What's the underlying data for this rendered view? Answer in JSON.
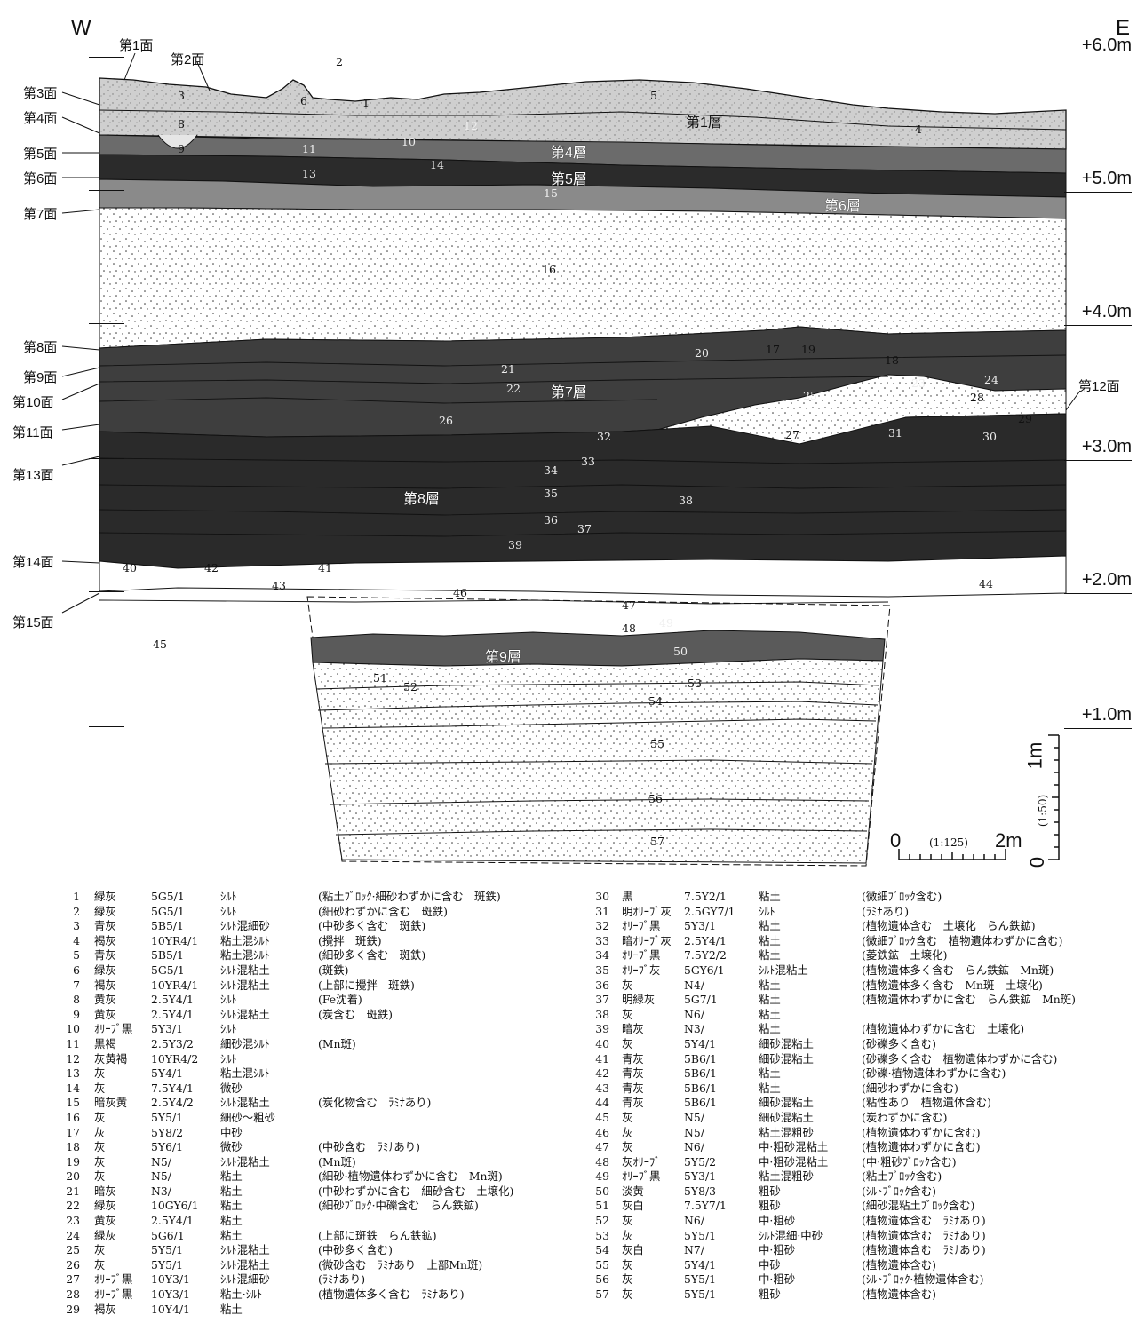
{
  "compass": {
    "west": "W",
    "east": "E"
  },
  "surfaces": [
    {
      "label": "第1面"
    },
    {
      "label": "第2面"
    },
    {
      "label": "第3面"
    },
    {
      "label": "第4面"
    },
    {
      "label": "第5面"
    },
    {
      "label": "第6面"
    },
    {
      "label": "第7面"
    },
    {
      "label": "第8面"
    },
    {
      "label": "第9面"
    },
    {
      "label": "第10面"
    },
    {
      "label": "第11面"
    },
    {
      "label": "第12面"
    },
    {
      "label": "第13面"
    },
    {
      "label": "第14面"
    },
    {
      "label": "第15面"
    }
  ],
  "elevations": [
    "+6.0m",
    "+5.0m",
    "+4.0m",
    "+3.0m",
    "+2.0m",
    "+1.0m"
  ],
  "strata": [
    "第1層",
    "第4層",
    "第5層",
    "第6層",
    "第7層",
    "第8層",
    "第9層"
  ],
  "unit_numbers": [
    "1",
    "2",
    "3",
    "4",
    "5",
    "6",
    "8",
    "9",
    "10",
    "11",
    "12",
    "13",
    "14",
    "15",
    "16",
    "17",
    "18",
    "19",
    "20",
    "21",
    "22",
    "23",
    "24",
    "25",
    "26",
    "27",
    "28",
    "29",
    "30",
    "31",
    "32",
    "33",
    "34",
    "35",
    "36",
    "37",
    "38",
    "39",
    "40",
    "41",
    "42",
    "43",
    "44",
    "45",
    "46",
    "47",
    "48",
    "49",
    "50",
    "51",
    "52",
    "53",
    "54",
    "55",
    "56",
    "57"
  ],
  "scale": {
    "horizontal": {
      "zero": "0",
      "ratio": "(1:125)",
      "max": "2m"
    },
    "vertical": {
      "zero": "0",
      "ratio": "(1:50)",
      "max": "1m"
    }
  },
  "legend": [
    {
      "no": "1",
      "color": "緑灰",
      "munsell": "5G5/1",
      "soil": "ｼﾙﾄ",
      "note": "(粘土ﾌﾞﾛｯｸ·細砂わずかに含む　斑鉄)"
    },
    {
      "no": "2",
      "color": "緑灰",
      "munsell": "5G5/1",
      "soil": "ｼﾙﾄ",
      "note": "(細砂わずかに含む　斑鉄)"
    },
    {
      "no": "3",
      "color": "青灰",
      "munsell": "5B5/1",
      "soil": "ｼﾙﾄ混細砂",
      "note": "(中砂多く含む　斑鉄)"
    },
    {
      "no": "4",
      "color": "褐灰",
      "munsell": "10YR4/1",
      "soil": "粘土混ｼﾙﾄ",
      "note": "(攪拌　斑鉄)"
    },
    {
      "no": "5",
      "color": "青灰",
      "munsell": "5B5/1",
      "soil": "粘土混ｼﾙﾄ",
      "note": "(細砂多く含む　斑鉄)"
    },
    {
      "no": "6",
      "color": "緑灰",
      "munsell": "5G5/1",
      "soil": "ｼﾙﾄ混粘土",
      "note": "(斑鉄)"
    },
    {
      "no": "7",
      "color": "褐灰",
      "munsell": "10YR4/1",
      "soil": "ｼﾙﾄ混粘土",
      "note": "(上部に攪拌　斑鉄)"
    },
    {
      "no": "8",
      "color": "黄灰",
      "munsell": "2.5Y4/1",
      "soil": "ｼﾙﾄ",
      "note": "(Fe沈着)"
    },
    {
      "no": "9",
      "color": "黄灰",
      "munsell": "2.5Y4/1",
      "soil": "ｼﾙﾄ混粘土",
      "note": "(炭含む　斑鉄)"
    },
    {
      "no": "10",
      "color": "ｵﾘｰﾌﾞ黒",
      "munsell": "5Y3/1",
      "soil": "ｼﾙﾄ",
      "note": ""
    },
    {
      "no": "11",
      "color": "黒褐",
      "munsell": "2.5Y3/2",
      "soil": "細砂混ｼﾙﾄ",
      "note": "(Mn斑)"
    },
    {
      "no": "12",
      "color": "灰黄褐",
      "munsell": "10YR4/2",
      "soil": "ｼﾙﾄ",
      "note": ""
    },
    {
      "no": "13",
      "color": "灰",
      "munsell": "5Y4/1",
      "soil": "粘土混ｼﾙﾄ",
      "note": ""
    },
    {
      "no": "14",
      "color": "灰",
      "munsell": "7.5Y4/1",
      "soil": "微砂",
      "note": ""
    },
    {
      "no": "15",
      "color": "暗灰黄",
      "munsell": "2.5Y4/2",
      "soil": "ｼﾙﾄ混粘土",
      "note": "(炭化物含む　ﾗﾐﾅあり)"
    },
    {
      "no": "16",
      "color": "灰",
      "munsell": "5Y5/1",
      "soil": "細砂～粗砂",
      "note": ""
    },
    {
      "no": "17",
      "color": "灰",
      "munsell": "5Y8/2",
      "soil": "中砂",
      "note": ""
    },
    {
      "no": "18",
      "color": "灰",
      "munsell": "5Y6/1",
      "soil": "微砂",
      "note": "(中砂含む　ﾗﾐﾅあり)"
    },
    {
      "no": "19",
      "color": "灰",
      "munsell": "N5/",
      "soil": "ｼﾙﾄ混粘土",
      "note": "(Mn斑)"
    },
    {
      "no": "20",
      "color": "灰",
      "munsell": "N5/",
      "soil": "粘土",
      "note": "(細砂·植物遺体わずかに含む　Mn斑)"
    },
    {
      "no": "21",
      "color": "暗灰",
      "munsell": "N3/",
      "soil": "粘土",
      "note": "(中砂わずかに含む　細砂含む　土壌化)"
    },
    {
      "no": "22",
      "color": "緑灰",
      "munsell": "10GY6/1",
      "soil": "粘土",
      "note": "(細砂ﾌﾞﾛｯｸ·中礫含む　らん鉄鉱)"
    },
    {
      "no": "23",
      "color": "黄灰",
      "munsell": "2.5Y4/1",
      "soil": "粘土",
      "note": ""
    },
    {
      "no": "24",
      "color": "緑灰",
      "munsell": "5G6/1",
      "soil": "粘土",
      "note": "(上部に斑鉄　らん鉄鉱)"
    },
    {
      "no": "25",
      "color": "灰",
      "munsell": "5Y5/1",
      "soil": "ｼﾙﾄ混粘土",
      "note": "(中砂多く含む)"
    },
    {
      "no": "26",
      "color": "灰",
      "munsell": "5Y5/1",
      "soil": "ｼﾙﾄ混粘土",
      "note": "(微砂含む　ﾗﾐﾅあり　上部Mn斑)"
    },
    {
      "no": "27",
      "color": "ｵﾘｰﾌﾞ黒",
      "munsell": "10Y3/1",
      "soil": "ｼﾙﾄ混細砂",
      "note": "(ﾗﾐﾅあり)"
    },
    {
      "no": "28",
      "color": "ｵﾘｰﾌﾞ黒",
      "munsell": "10Y3/1",
      "soil": "粘土·ｼﾙﾄ",
      "note": "(植物遺体多く含む　ﾗﾐﾅあり)"
    },
    {
      "no": "29",
      "color": "褐灰",
      "munsell": "10Y4/1",
      "soil": "粘土",
      "note": ""
    },
    {
      "no": "30",
      "color": "黒",
      "munsell": "7.5Y2/1",
      "soil": "粘土",
      "note": "(微細ﾌﾞﾛｯｸ含む)"
    },
    {
      "no": "31",
      "color": "明ｵﾘｰﾌﾞ灰",
      "munsell": "2.5GY7/1",
      "soil": "ｼﾙﾄ",
      "note": "(ﾗﾐﾅあり)"
    },
    {
      "no": "32",
      "color": "ｵﾘｰﾌﾞ黒",
      "munsell": "5Y3/1",
      "soil": "粘土",
      "note": "(植物遺体含む　土壌化　らん鉄鉱)"
    },
    {
      "no": "33",
      "color": "暗ｵﾘｰﾌﾞ灰",
      "munsell": "2.5Y4/1",
      "soil": "粘土",
      "note": "(微細ﾌﾞﾛｯｸ含む　植物遺体わずかに含む)"
    },
    {
      "no": "34",
      "color": "ｵﾘｰﾌﾞ黒",
      "munsell": "7.5Y2/2",
      "soil": "粘土",
      "note": "(菱鉄鉱　土壌化)"
    },
    {
      "no": "35",
      "color": "ｵﾘｰﾌﾞ灰",
      "munsell": "5GY6/1",
      "soil": "ｼﾙﾄ混粘土",
      "note": "(植物遺体多く含む　らん鉄鉱　Mn斑)"
    },
    {
      "no": "36",
      "color": "灰",
      "munsell": "N4/",
      "soil": "粘土",
      "note": "(植物遺体多く含む　Mn斑　土壌化)"
    },
    {
      "no": "37",
      "color": "明緑灰",
      "munsell": "5G7/1",
      "soil": "粘土",
      "note": "(植物遺体わずかに含む　らん鉄鉱　Mn斑)"
    },
    {
      "no": "38",
      "color": "灰",
      "munsell": "N6/",
      "soil": "粘土",
      "note": ""
    },
    {
      "no": "39",
      "color": "暗灰",
      "munsell": "N3/",
      "soil": "粘土",
      "note": "(植物遺体わずかに含む　土壌化)"
    },
    {
      "no": "40",
      "color": "灰",
      "munsell": "5Y4/1",
      "soil": "細砂混粘土",
      "note": "(砂礫多く含む)"
    },
    {
      "no": "41",
      "color": "青灰",
      "munsell": "5B6/1",
      "soil": "細砂混粘土",
      "note": "(砂礫多く含む　植物遺体わずかに含む)"
    },
    {
      "no": "42",
      "color": "青灰",
      "munsell": "5B6/1",
      "soil": "粘土",
      "note": "(砂礫·植物遺体わずかに含む)"
    },
    {
      "no": "43",
      "color": "青灰",
      "munsell": "5B6/1",
      "soil": "粘土",
      "note": "(細砂わずかに含む)"
    },
    {
      "no": "44",
      "color": "青灰",
      "munsell": "5B6/1",
      "soil": "細砂混粘土",
      "note": "(粘性あり　植物遺体含む)"
    },
    {
      "no": "45",
      "color": "灰",
      "munsell": "N5/",
      "soil": "細砂混粘土",
      "note": "(炭わずかに含む)"
    },
    {
      "no": "46",
      "color": "灰",
      "munsell": "N5/",
      "soil": "粘土混粗砂",
      "note": "(植物遺体わずかに含む)"
    },
    {
      "no": "47",
      "color": "灰",
      "munsell": "N6/",
      "soil": "中·粗砂混粘土",
      "note": "(植物遺体わずかに含む)"
    },
    {
      "no": "48",
      "color": "灰ｵﾘｰﾌﾞ",
      "munsell": "5Y5/2",
      "soil": "中·粗砂混粘土",
      "note": "(中·粗砂ﾌﾞﾛｯｸ含む)"
    },
    {
      "no": "49",
      "color": "ｵﾘｰﾌﾞ黒",
      "munsell": "5Y3/1",
      "soil": "粘土混粗砂",
      "note": "(粘土ﾌﾞﾛｯｸ含む)"
    },
    {
      "no": "50",
      "color": "淡黄",
      "munsell": "5Y8/3",
      "soil": "粗砂",
      "note": "(ｼﾙﾄﾌﾞﾛｯｸ含む)"
    },
    {
      "no": "51",
      "color": "灰白",
      "munsell": "7.5Y7/1",
      "soil": "粗砂",
      "note": "(細砂混粘土ﾌﾞﾛｯｸ含む)"
    },
    {
      "no": "52",
      "color": "灰",
      "munsell": "N6/",
      "soil": "中·粗砂",
      "note": "(植物遺体含む　ﾗﾐﾅあり)"
    },
    {
      "no": "53",
      "color": "灰",
      "munsell": "5Y5/1",
      "soil": "ｼﾙﾄ混細·中砂",
      "note": "(植物遺体含む　ﾗﾐﾅあり)"
    },
    {
      "no": "54",
      "color": "灰白",
      "munsell": "N7/",
      "soil": "中·粗砂",
      "note": "(植物遺体含む　ﾗﾐﾅあり)"
    },
    {
      "no": "55",
      "color": "灰",
      "munsell": "5Y4/1",
      "soil": "中砂",
      "note": "(植物遺体含む)"
    },
    {
      "no": "56",
      "color": "灰",
      "munsell": "5Y5/1",
      "soil": "中·粗砂",
      "note": "(ｼﾙﾄﾌﾞﾛｯｸ·植物遺体含む)"
    },
    {
      "no": "57",
      "color": "灰",
      "munsell": "5Y5/1",
      "soil": "粗砂",
      "note": "(植物遺体含む)"
    }
  ]
}
